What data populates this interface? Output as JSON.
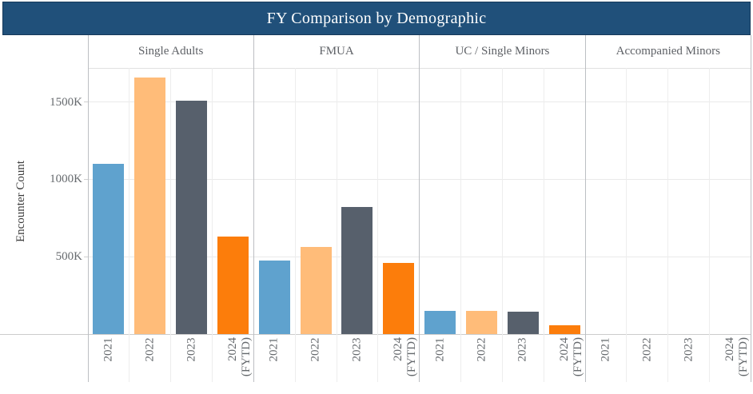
{
  "title": "FY Comparison by Demographic",
  "y_axis": {
    "label": "Encounter Count",
    "tick_labels": [
      "500K",
      "1000K",
      "1500K"
    ]
  },
  "x_axis": {
    "year_labels": [
      "2021",
      "2022",
      "2023",
      "2024\n(FYTD)"
    ]
  },
  "colors": {
    "banner_bg": "#20507a",
    "banner_border": "#16395a",
    "bar_2021": "#5fa2ce",
    "bar_2022": "#ffbc79",
    "bar_2023": "#57606c",
    "bar_2024": "#fc7d0b",
    "panel_border": "#bcbfc3",
    "gridline": "#e9e9e9"
  },
  "chart_data": {
    "type": "bar",
    "title": "FY Comparison by Demographic",
    "xlabel": "",
    "ylabel": "Encounter Count",
    "values_unit": "K (thousands of encounters)",
    "ylim": [
      0,
      1720
    ],
    "ytick_values": [
      500,
      1000,
      1500
    ],
    "ytick_labels": [
      "500K",
      "1000K",
      "1500K"
    ],
    "grid": "horizontal",
    "legend_position": "none",
    "categories": [
      "2021",
      "2022",
      "2023",
      "2024 (FYTD)"
    ],
    "bar_colors_by_year": [
      "#5fa2ce",
      "#ffbc79",
      "#57606c",
      "#fc7d0b"
    ],
    "panels": [
      {
        "label": "Single Adults",
        "values": [
          1100,
          1660,
          1510,
          630
        ]
      },
      {
        "label": "FMUA",
        "values": [
          475,
          565,
          820,
          460
        ]
      },
      {
        "label": "UC / Single Minors",
        "values": [
          148,
          152,
          143,
          58
        ]
      },
      {
        "label": "Accompanied Minors",
        "values": [
          0,
          0,
          0,
          0
        ]
      }
    ]
  }
}
